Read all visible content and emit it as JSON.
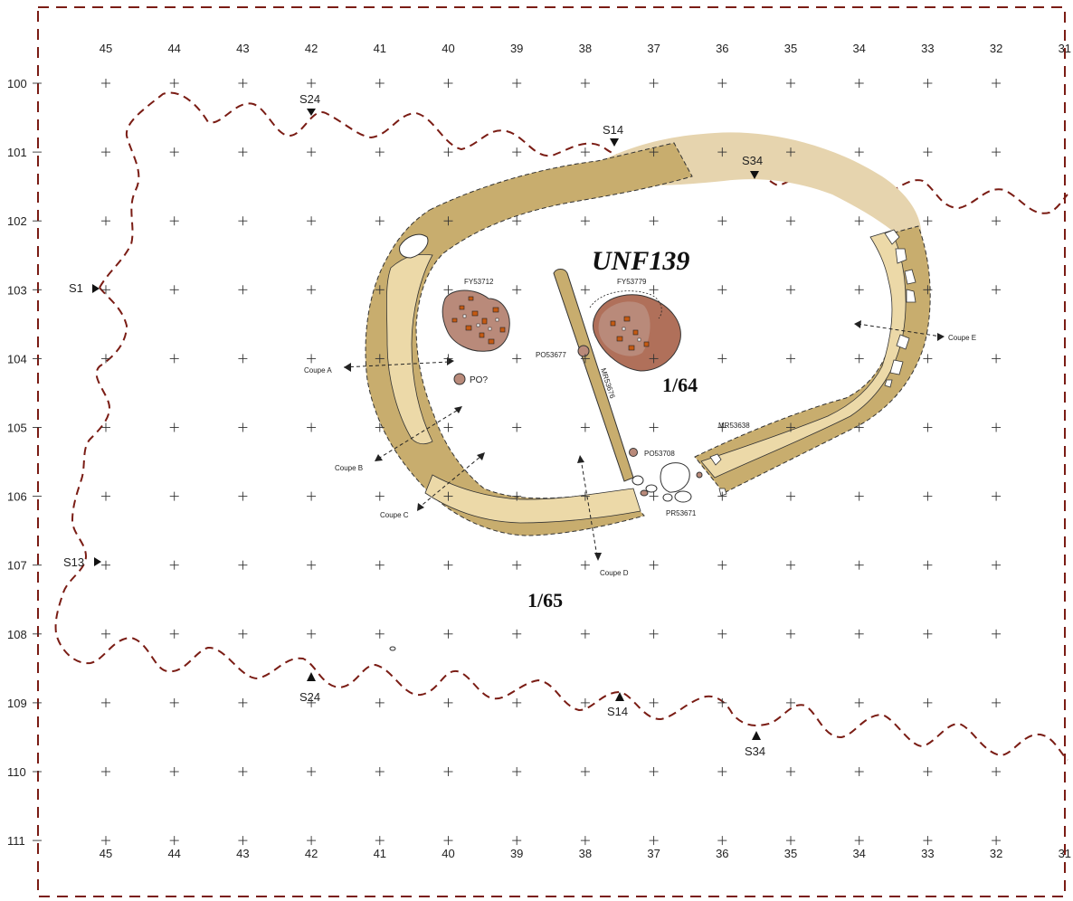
{
  "structure_title": "UNF139",
  "zones": [
    "1/64",
    "1/65"
  ],
  "grid": {
    "x_labels": [
      "45",
      "44",
      "43",
      "42",
      "41",
      "40",
      "39",
      "38",
      "37",
      "36",
      "35",
      "34",
      "33",
      "32",
      "31"
    ],
    "y_labels": [
      "100",
      "101",
      "102",
      "103",
      "104",
      "105",
      "106",
      "107",
      "108",
      "109",
      "110",
      "111"
    ]
  },
  "features": {
    "fy53712": "FY53712",
    "fy53779": "FY53779",
    "po53677": "PO53677",
    "mr53676": "MR53676",
    "mr53638": "MR53638",
    "po53708": "PO53708",
    "pr53671": "PR53671",
    "po_q": "PO?"
  },
  "coupes": {
    "a": "Coupe A",
    "b": "Coupe B",
    "c": "Coupe C",
    "d": "Coupe D",
    "e": "Coupe E"
  },
  "sections": {
    "s24_top": "S24",
    "s14_top": "S14",
    "s34_top": "S34",
    "s1": "S1",
    "s13": "S13",
    "s24_bottom": "S24",
    "s14_bottom": "S14",
    "s34_bottom": "S34"
  },
  "colors": {
    "ditch_dark": "#c8ad6e",
    "ditch_light": "#ecd9a8",
    "ditch_pale": "#e6d4ae",
    "pit_fill": "#b98a7a",
    "pit_dark": "#b0705a",
    "stone": "#c55a12",
    "erosion_line": "#7a1c14",
    "border": "#7a1c14"
  }
}
